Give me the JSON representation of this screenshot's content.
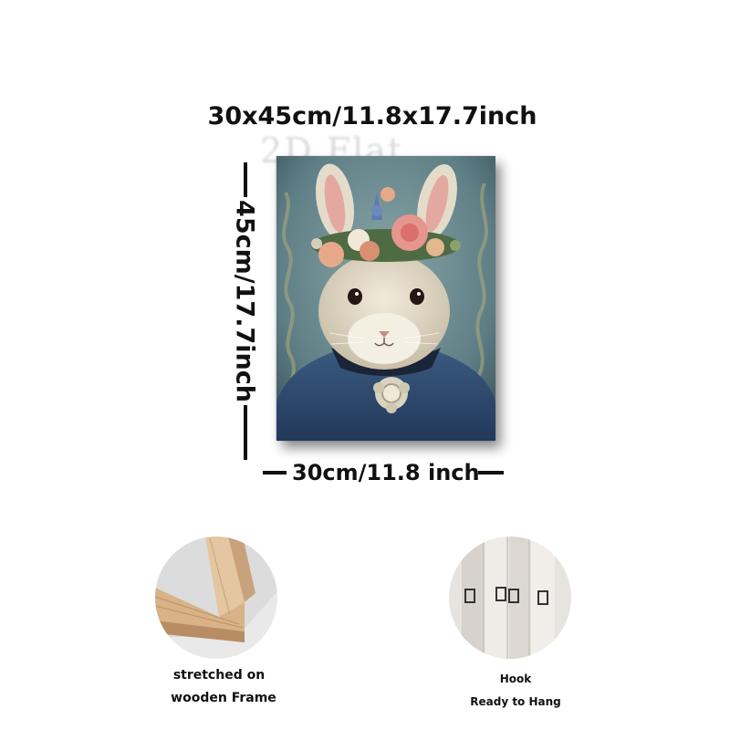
{
  "product": {
    "size_title": "30x45cm/11.8x17.7inch",
    "height_label": "45cm/17.7inch",
    "width_label": "30cm/11.8 inch",
    "watermark": "2D Flat",
    "painting_subject": "rabbit wearing a flower crown and blue jacket with brooch"
  },
  "features": [
    {
      "icon": "wooden-frame-corner",
      "line1": "stretched on",
      "line2": "wooden Frame"
    },
    {
      "icon": "hook-clips",
      "line1": "Hook",
      "line2": "Ready to Hang"
    }
  ],
  "colors": {
    "background": "#ffffff",
    "text": "#111111",
    "painting_bg": "#6f8e92",
    "jacket": "#2f4a6e",
    "rabbit_fur": "#e6dfcf",
    "wood": "#d7b48b"
  }
}
